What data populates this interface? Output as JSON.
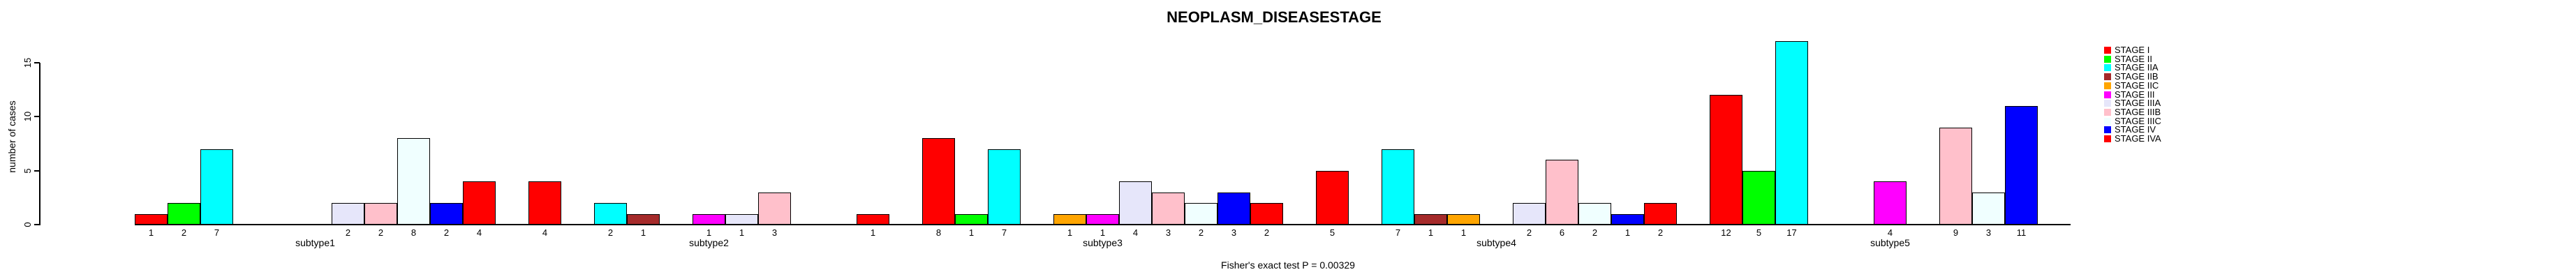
{
  "chart_data": {
    "type": "bar",
    "title": "NEOPLASM_DISEASESTAGE",
    "ylabel": "number of cases",
    "xlabel": "",
    "caption": "Fisher's exact test P = 0.00329",
    "yticks": [
      "0",
      "5",
      "10",
      "15"
    ],
    "ylim": [
      0,
      17
    ],
    "grid": false,
    "legend_position": "right",
    "bar_value_labels_shown": true,
    "series": [
      {
        "name": "STAGE I",
        "color": "#FF0000",
        "values": [
          1,
          4,
          8,
          5,
          12
        ]
      },
      {
        "name": "STAGE II",
        "color": "#00FF00",
        "values": [
          2,
          0,
          1,
          0,
          5
        ]
      },
      {
        "name": "STAGE IIA",
        "color": "#00FFFF",
        "values": [
          7,
          2,
          7,
          7,
          17
        ]
      },
      {
        "name": "STAGE IIB",
        "color": "#A52A2A",
        "values": [
          0,
          1,
          0,
          1,
          0
        ]
      },
      {
        "name": "STAGE IIC",
        "color": "#FFA500",
        "values": [
          0,
          0,
          1,
          1,
          0
        ]
      },
      {
        "name": "STAGE III",
        "color": "#FF00FF",
        "values": [
          0,
          1,
          1,
          0,
          4
        ]
      },
      {
        "name": "STAGE IIIA",
        "color": "#E6E6FA",
        "values": [
          2,
          1,
          4,
          2,
          0
        ]
      },
      {
        "name": "STAGE IIIB",
        "color": "#FFC0CB",
        "values": [
          2,
          3,
          3,
          6,
          9
        ]
      },
      {
        "name": "STAGE IIIC",
        "color": "#F0FFFF",
        "values": [
          8,
          0,
          2,
          2,
          3
        ]
      },
      {
        "name": "STAGE IV",
        "color": "#0000FF",
        "values": [
          2,
          0,
          3,
          1,
          11
        ]
      },
      {
        "name": "STAGE IVA",
        "color": "#FF0000",
        "values": [
          4,
          1,
          2,
          2,
          0
        ]
      }
    ],
    "categories": [
      "subtype1",
      "subtype2",
      "subtype3",
      "subtype4",
      "subtype5"
    ]
  }
}
